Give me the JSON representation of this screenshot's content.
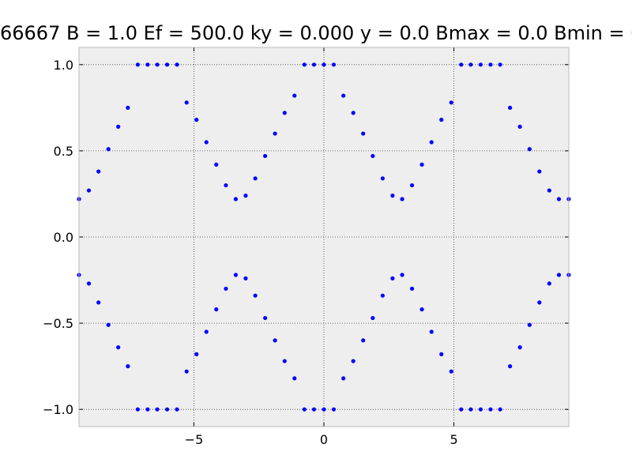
{
  "chart_data": {
    "type": "scatter",
    "title": "66667 B = 1.0 Ef = 500.0 ky = 0.000 y = 0.0 Bmax = 0.0 Bmin = 0",
    "xlabel": "",
    "ylabel": "",
    "xlim": [
      -9.42,
      9.42
    ],
    "ylim": [
      -1.1,
      1.1
    ],
    "x_ticks": [
      -5,
      0,
      5
    ],
    "x_tick_labels": [
      "−5",
      "0",
      "5"
    ],
    "y_ticks": [
      1.0,
      0.5,
      0.0,
      -0.5,
      -1.0
    ],
    "y_tick_labels": [
      "1.0",
      "0.5",
      "0.0",
      "−0.5",
      "−1.0"
    ],
    "grid": true,
    "colors": {
      "points": "#0000ff",
      "axes_bg": "#eeeeee",
      "grid": "#444444",
      "frame": "#bbbbbb"
    },
    "series": [
      {
        "values_x": [
          -9.42,
          -9.04,
          -8.67,
          -8.29,
          -7.91,
          -7.54,
          -7.16,
          -6.78,
          -6.41,
          -6.03,
          -5.65,
          -5.28,
          -4.9,
          -4.52,
          -4.14,
          -3.77,
          -3.39,
          -3.01,
          -2.64,
          -2.26,
          -1.88,
          -1.51,
          -1.13,
          -0.75,
          -0.38,
          0.0,
          0.38,
          0.75,
          1.13,
          1.51,
          1.88,
          2.26,
          2.64,
          3.01,
          3.39,
          3.77,
          4.14,
          4.52,
          4.9,
          5.28,
          5.65,
          6.03,
          6.41,
          6.78,
          7.16,
          7.54,
          7.91,
          8.29,
          8.67,
          9.04,
          9.42
        ],
        "values_y": [
          0.22,
          0.27,
          0.38,
          0.51,
          0.64,
          0.75,
          1.0,
          1.0,
          1.0,
          1.0,
          1.0,
          0.78,
          0.68,
          0.55,
          0.42,
          0.3,
          0.22,
          0.24,
          0.34,
          0.47,
          0.6,
          0.72,
          0.82,
          1.0,
          1.0,
          1.0,
          1.0,
          0.82,
          0.72,
          0.6,
          0.47,
          0.34,
          0.24,
          0.22,
          0.3,
          0.42,
          0.55,
          0.68,
          0.78,
          1.0,
          1.0,
          1.0,
          1.0,
          1.0,
          0.75,
          0.64,
          0.51,
          0.38,
          0.27,
          0.22,
          0.22
        ]
      },
      {
        "values_x": [
          -9.42,
          -9.04,
          -8.67,
          -8.29,
          -7.91,
          -7.54,
          -7.16,
          -6.78,
          -6.41,
          -6.03,
          -5.65,
          -5.28,
          -4.9,
          -4.52,
          -4.14,
          -3.77,
          -3.39,
          -3.01,
          -2.64,
          -2.26,
          -1.88,
          -1.51,
          -1.13,
          -0.75,
          -0.38,
          0.0,
          0.38,
          0.75,
          1.13,
          1.51,
          1.88,
          2.26,
          2.64,
          3.01,
          3.39,
          3.77,
          4.14,
          4.52,
          4.9,
          5.28,
          5.65,
          6.03,
          6.41,
          6.78,
          7.16,
          7.54,
          7.91,
          8.29,
          8.67,
          9.04,
          9.42
        ],
        "values_y": [
          -0.22,
          -0.27,
          -0.38,
          -0.51,
          -0.64,
          -0.75,
          -1.0,
          -1.0,
          -1.0,
          -1.0,
          -1.0,
          -0.78,
          -0.68,
          -0.55,
          -0.42,
          -0.3,
          -0.22,
          -0.24,
          -0.34,
          -0.47,
          -0.6,
          -0.72,
          -0.82,
          -1.0,
          -1.0,
          -1.0,
          -1.0,
          -0.82,
          -0.72,
          -0.6,
          -0.47,
          -0.34,
          -0.24,
          -0.22,
          -0.3,
          -0.42,
          -0.55,
          -0.68,
          -0.78,
          -1.0,
          -1.0,
          -1.0,
          -1.0,
          -1.0,
          -0.75,
          -0.64,
          -0.51,
          -0.38,
          -0.27,
          -0.22,
          -0.22
        ]
      }
    ]
  }
}
